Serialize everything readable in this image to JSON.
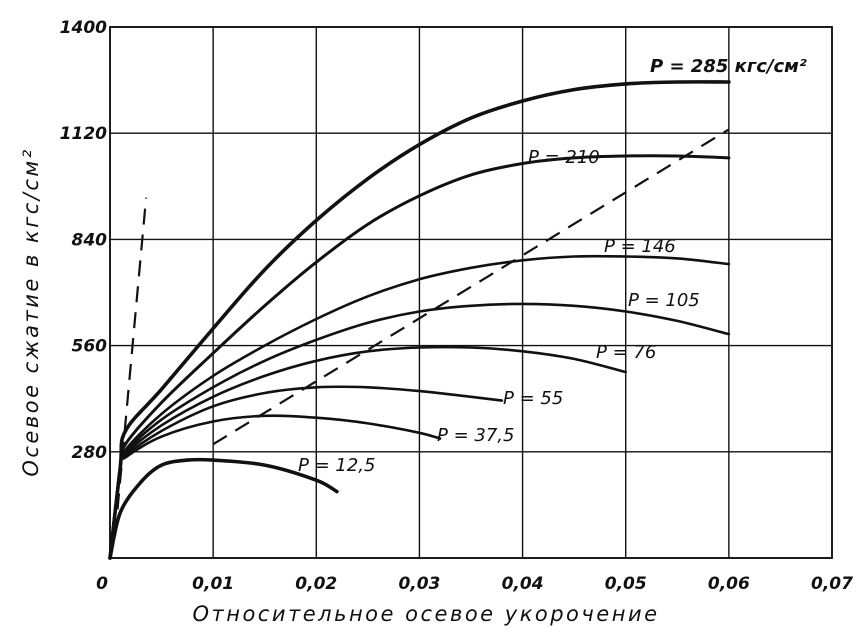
{
  "chart_data": {
    "type": "line",
    "title": "",
    "xlabel": "Относительное осевое укорочение",
    "ylabel": "Осевое сжатие в кгс/см²",
    "xlim": [
      0,
      0.07
    ],
    "ylim": [
      0,
      1400
    ],
    "x_ticks": [
      "0",
      "0,01",
      "0,02",
      "0,03",
      "0,04",
      "0,05",
      "0,06",
      "0,07"
    ],
    "y_ticks": [
      "280",
      "560",
      "840",
      "1120",
      "1400"
    ],
    "grid": true,
    "series": [
      {
        "name": "P = 285 кгс/см²",
        "x": [
          0,
          0.001,
          0.0015,
          0.005,
          0.01,
          0.015,
          0.02,
          0.025,
          0.03,
          0.035,
          0.04,
          0.045,
          0.05,
          0.055,
          0.06
        ],
        "y": [
          0,
          240,
          335,
          445,
          605,
          760,
          890,
          1000,
          1090,
          1160,
          1205,
          1235,
          1250,
          1255,
          1255
        ]
      },
      {
        "name": "P = 210",
        "x": [
          0,
          0.001,
          0.0015,
          0.005,
          0.01,
          0.015,
          0.02,
          0.025,
          0.03,
          0.035,
          0.04,
          0.045,
          0.05,
          0.055,
          0.06
        ],
        "y": [
          0,
          240,
          300,
          410,
          540,
          665,
          780,
          880,
          955,
          1010,
          1040,
          1055,
          1060,
          1060,
          1055
        ]
      },
      {
        "name": "P = 146",
        "x": [
          0,
          0.001,
          0.0015,
          0.005,
          0.01,
          0.015,
          0.02,
          0.025,
          0.03,
          0.035,
          0.04,
          0.045,
          0.05,
          0.055,
          0.06
        ],
        "y": [
          0,
          240,
          285,
          380,
          480,
          560,
          630,
          690,
          735,
          765,
          785,
          795,
          795,
          790,
          775
        ]
      },
      {
        "name": "P = 105",
        "x": [
          0,
          0.001,
          0.0015,
          0.005,
          0.01,
          0.015,
          0.02,
          0.025,
          0.03,
          0.035,
          0.04,
          0.045,
          0.05,
          0.055,
          0.06
        ],
        "y": [
          0,
          240,
          280,
          365,
          450,
          520,
          575,
          620,
          650,
          665,
          670,
          665,
          650,
          625,
          590
        ]
      },
      {
        "name": "P = 76",
        "x": [
          0,
          0.001,
          0.0015,
          0.005,
          0.01,
          0.015,
          0.02,
          0.025,
          0.03,
          0.035,
          0.04,
          0.045,
          0.05
        ],
        "y": [
          0,
          240,
          275,
          350,
          425,
          480,
          520,
          545,
          555,
          555,
          545,
          525,
          490
        ]
      },
      {
        "name": "P = 55",
        "x": [
          0,
          0.001,
          0.0015,
          0.005,
          0.01,
          0.015,
          0.02,
          0.025,
          0.03,
          0.035,
          0.038
        ],
        "y": [
          0,
          240,
          270,
          335,
          400,
          435,
          450,
          450,
          440,
          425,
          415
        ]
      },
      {
        "name": "P = 37,5",
        "x": [
          0,
          0.001,
          0.0015,
          0.005,
          0.01,
          0.015,
          0.02,
          0.025,
          0.03,
          0.032
        ],
        "y": [
          0,
          240,
          265,
          320,
          360,
          375,
          370,
          355,
          330,
          315
        ]
      },
      {
        "name": "P = 12,5",
        "x": [
          0,
          0.001,
          0.003,
          0.005,
          0.0075,
          0.01,
          0.015,
          0.02,
          0.022
        ],
        "y": [
          0,
          120,
          200,
          245,
          258,
          258,
          245,
          205,
          175
        ]
      }
    ],
    "dashed_lines": [
      {
        "x": [
          0.0005,
          0.0035
        ],
        "y": [
          60,
          950
        ]
      },
      {
        "x": [
          0.01,
          0.06
        ],
        "y": [
          300,
          1130
        ]
      }
    ]
  }
}
